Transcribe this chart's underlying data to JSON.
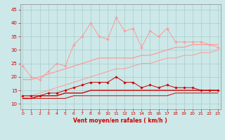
{
  "x": [
    0,
    1,
    2,
    3,
    4,
    5,
    6,
    7,
    8,
    9,
    10,
    11,
    12,
    13,
    14,
    15,
    16,
    17,
    18,
    19,
    20,
    21,
    22,
    23
  ],
  "line1_jagged_pink": [
    24,
    20,
    19,
    22,
    25,
    24,
    32,
    35,
    40,
    35,
    34,
    42,
    37,
    38,
    31,
    37,
    35,
    38,
    33,
    33,
    33,
    33,
    32,
    31
  ],
  "line2_smooth_pink": [
    19,
    19,
    20,
    21,
    22,
    23,
    24,
    25,
    26,
    27,
    27,
    27,
    27,
    27,
    28,
    28,
    29,
    30,
    31,
    31,
    32,
    32,
    32,
    32
  ],
  "line3_smooth_pink2": [
    12,
    13,
    14,
    15,
    16,
    17,
    18,
    19,
    20,
    21,
    22,
    23,
    23,
    24,
    25,
    25,
    26,
    27,
    27,
    28,
    28,
    29,
    29,
    30
  ],
  "line4_jagged_red": [
    13,
    13,
    13,
    14,
    14,
    15,
    16,
    17,
    18,
    18,
    18,
    20,
    18,
    18,
    16,
    17,
    16,
    17,
    16,
    16,
    16,
    15,
    15,
    15
  ],
  "line5_smooth_red": [
    12,
    12,
    13,
    13,
    13,
    14,
    14,
    14,
    15,
    15,
    15,
    15,
    15,
    15,
    15,
    15,
    15,
    15,
    15,
    15,
    15,
    15,
    15,
    15
  ],
  "line6_smooth_red2": [
    12,
    12,
    12,
    12,
    12,
    12,
    13,
    13,
    13,
    13,
    13,
    13,
    13,
    13,
    13,
    13,
    13,
    13,
    14,
    14,
    14,
    14,
    14,
    14
  ],
  "bg_color": "#cce8e8",
  "grid_color": "#aacccc",
  "color_pink": "#ff9999",
  "color_darkred": "#cc0000",
  "xlim": [
    -0.3,
    23.3
  ],
  "ylim": [
    8,
    47
  ],
  "yticks": [
    10,
    15,
    20,
    25,
    30,
    35,
    40,
    45
  ],
  "xticks": [
    0,
    1,
    2,
    3,
    4,
    5,
    6,
    7,
    8,
    9,
    10,
    11,
    12,
    13,
    14,
    15,
    16,
    17,
    18,
    19,
    20,
    21,
    22,
    23
  ],
  "xlabel": "Vent moyen/en rafales ( km/h )",
  "xlabel_color": "#cc0000",
  "tick_color": "#cc0000",
  "axis_color": "#888888"
}
